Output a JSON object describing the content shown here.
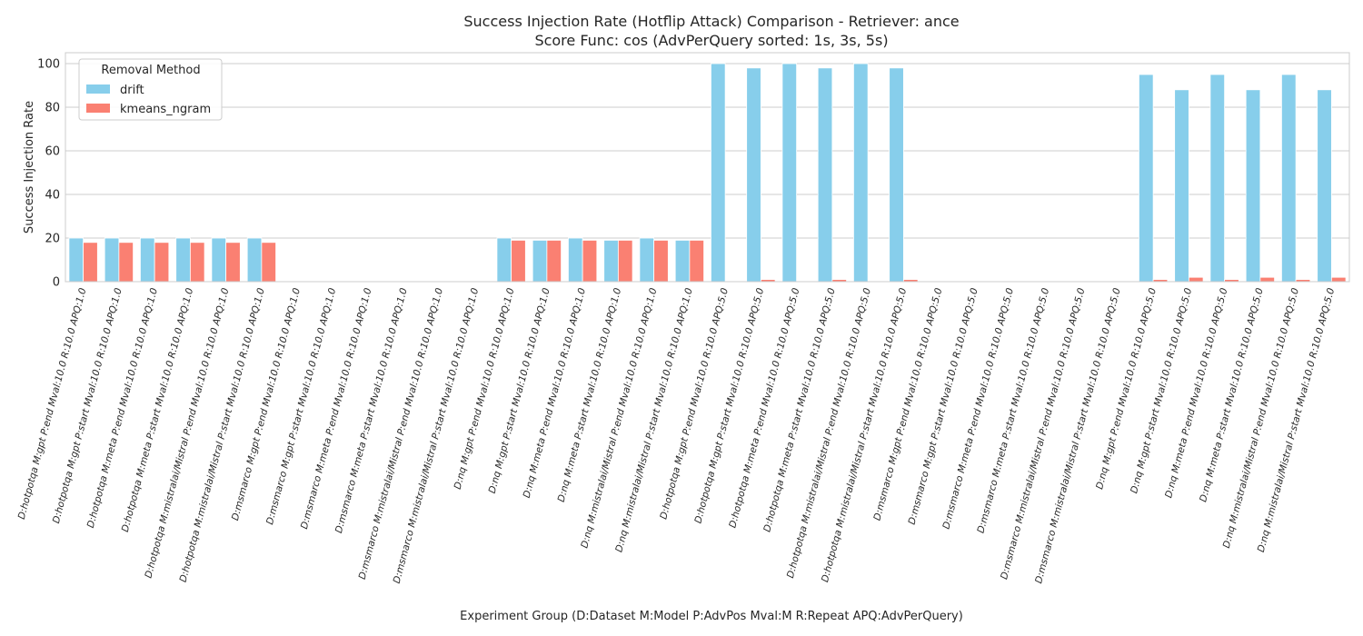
{
  "chart_data": {
    "type": "bar",
    "title": "Success Injection Rate (Hotflip Attack) Comparison - Retriever: ance",
    "subtitle": "Score Func: cos (AdvPerQuery sorted: 1s, 3s, 5s)",
    "xlabel": "Experiment Group (D:Dataset M:Model P:AdvPos Mval:M R:Repeat APQ:AdvPerQuery)",
    "ylabel": "Success Injection Rate",
    "ylim": [
      0,
      105
    ],
    "yticks": [
      0,
      20,
      40,
      60,
      80,
      100
    ],
    "grid": true,
    "legend": {
      "title": "Removal Method",
      "placement": "top-left"
    },
    "categories": [
      "D:hotpotqa M:gpt P:end Mval:10.0 R:10.0 APQ:1.0",
      "D:hotpotqa M:gpt P:start Mval:10.0 R:10.0 APQ:1.0",
      "D:hotpotqa M:meta P:end Mval:10.0 R:10.0 APQ:1.0",
      "D:hotpotqa M:meta P:start Mval:10.0 R:10.0 APQ:1.0",
      "D:hotpotqa M:mistralai/Mistral P:end Mval:10.0 R:10.0 APQ:1.0",
      "D:hotpotqa M:mistralai/Mistral P:start Mval:10.0 R:10.0 APQ:1.0",
      "D:msmarco M:gpt P:end Mval:10.0 R:10.0 APQ:1.0",
      "D:msmarco M:gpt P:start Mval:10.0 R:10.0 APQ:1.0",
      "D:msmarco M:meta P:end Mval:10.0 R:10.0 APQ:1.0",
      "D:msmarco M:meta P:start Mval:10.0 R:10.0 APQ:1.0",
      "D:msmarco M:mistralai/Mistral P:end Mval:10.0 R:10.0 APQ:1.0",
      "D:msmarco M:mistralai/Mistral P:start Mval:10.0 R:10.0 APQ:1.0",
      "D:nq M:gpt P:end Mval:10.0 R:10.0 APQ:1.0",
      "D:nq M:gpt P:start Mval:10.0 R:10.0 APQ:1.0",
      "D:nq M:meta P:end Mval:10.0 R:10.0 APQ:1.0",
      "D:nq M:meta P:start Mval:10.0 R:10.0 APQ:1.0",
      "D:nq M:mistralai/Mistral P:end Mval:10.0 R:10.0 APQ:1.0",
      "D:nq M:mistralai/Mistral P:start Mval:10.0 R:10.0 APQ:1.0",
      "D:hotpotqa M:gpt P:end Mval:10.0 R:10.0 APQ:5.0",
      "D:hotpotqa M:gpt P:start Mval:10.0 R:10.0 APQ:5.0",
      "D:hotpotqa M:meta P:end Mval:10.0 R:10.0 APQ:5.0",
      "D:hotpotqa M:meta P:start Mval:10.0 R:10.0 APQ:5.0",
      "D:hotpotqa M:mistralai/Mistral P:end Mval:10.0 R:10.0 APQ:5.0",
      "D:hotpotqa M:mistralai/Mistral P:start Mval:10.0 R:10.0 APQ:5.0",
      "D:msmarco M:gpt P:end Mval:10.0 R:10.0 APQ:5.0",
      "D:msmarco M:gpt P:start Mval:10.0 R:10.0 APQ:5.0",
      "D:msmarco M:meta P:end Mval:10.0 R:10.0 APQ:5.0",
      "D:msmarco M:meta P:start Mval:10.0 R:10.0 APQ:5.0",
      "D:msmarco M:mistralai/Mistral P:end Mval:10.0 R:10.0 APQ:5.0",
      "D:msmarco M:mistralai/Mistral P:start Mval:10.0 R:10.0 APQ:5.0",
      "D:nq M:gpt P:end Mval:10.0 R:10.0 APQ:5.0",
      "D:nq M:gpt P:start Mval:10.0 R:10.0 APQ:5.0",
      "D:nq M:meta P:end Mval:10.0 R:10.0 APQ:5.0",
      "D:nq M:meta P:start Mval:10.0 R:10.0 APQ:5.0",
      "D:nq M:mistralai/Mistral P:end Mval:10.0 R:10.0 APQ:5.0",
      "D:nq M:mistralai/Mistral P:start Mval:10.0 R:10.0 APQ:5.0"
    ],
    "series": [
      {
        "name": "drift",
        "color": "#87ceeb",
        "values": [
          20,
          20,
          20,
          20,
          20,
          20,
          0,
          0,
          0,
          0,
          0,
          0,
          20,
          19,
          20,
          19,
          20,
          19,
          100,
          98,
          100,
          98,
          100,
          98,
          0,
          0,
          0,
          0,
          0,
          0,
          95,
          88,
          95,
          88,
          95,
          88
        ]
      },
      {
        "name": "kmeans_ngram",
        "color": "#fa8072",
        "values": [
          18,
          18,
          18,
          18,
          18,
          18,
          0,
          0,
          0,
          0,
          0,
          0,
          19,
          19,
          19,
          19,
          19,
          19,
          0,
          1,
          0,
          1,
          0,
          1,
          0,
          0,
          0,
          0,
          0,
          0,
          1,
          2,
          1,
          2,
          1,
          2
        ]
      }
    ]
  }
}
